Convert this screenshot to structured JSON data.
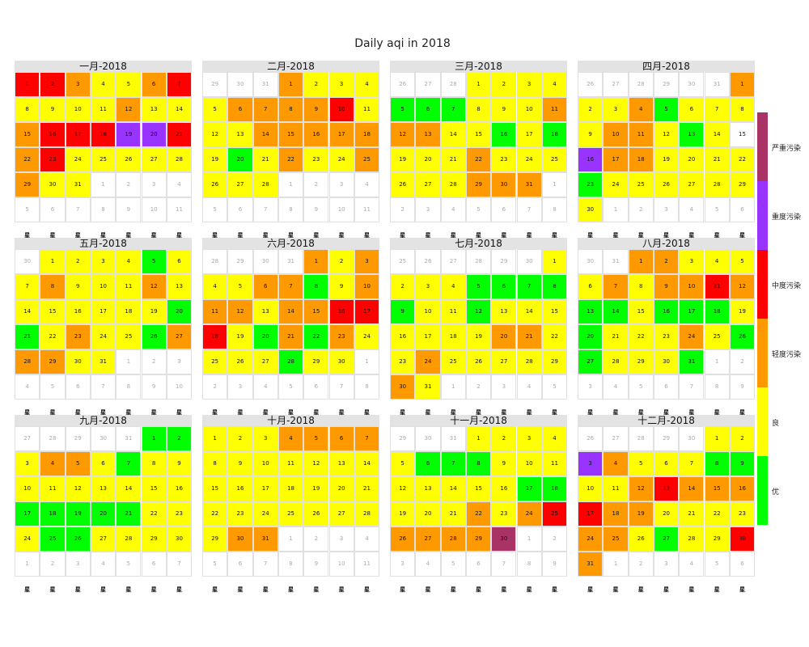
{
  "chart_data": {
    "type": "calendar-heatmap",
    "title": "Daily aqi in 2018",
    "year": 2018,
    "weekday_header_glyph": "星",
    "legend": {
      "categories": [
        {
          "label": "优",
          "color": "#00ff00"
        },
        {
          "label": "良",
          "color": "#ffff00"
        },
        {
          "label": "轻度污染",
          "color": "#ff9900"
        },
        {
          "label": "中度污染",
          "color": "#ff0000"
        },
        {
          "label": "重度污染",
          "color": "#9933ff"
        },
        {
          "label": "严重污染",
          "color": "#aa3366"
        }
      ]
    },
    "months": [
      {
        "name": "一月-2018",
        "days": 31,
        "levels": [
          3,
          3,
          2,
          1,
          1,
          2,
          3,
          1,
          1,
          1,
          1,
          2,
          1,
          1,
          2,
          3,
          3,
          3,
          4,
          4,
          3,
          2,
          3,
          1,
          1,
          1,
          1,
          1,
          2,
          1,
          1
        ]
      },
      {
        "name": "二月-2018",
        "days": 28,
        "levels": [
          2,
          1,
          1,
          1,
          1,
          2,
          2,
          2,
          2,
          3,
          1,
          1,
          1,
          2,
          2,
          2,
          2,
          2,
          1,
          0,
          1,
          2,
          1,
          1,
          2,
          1,
          1,
          1
        ]
      },
      {
        "name": "三月-2018",
        "days": 31,
        "levels": [
          1,
          1,
          1,
          1,
          0,
          0,
          0,
          1,
          1,
          1,
          2,
          2,
          2,
          1,
          1,
          0,
          1,
          0,
          1,
          1,
          1,
          2,
          1,
          1,
          1,
          1,
          1,
          1,
          2,
          2,
          2
        ]
      },
      {
        "name": "四月-2018",
        "days": 30,
        "levels": [
          2,
          1,
          1,
          2,
          0,
          1,
          1,
          1,
          1,
          2,
          2,
          1,
          0,
          1,
          -1,
          4,
          2,
          2,
          1,
          1,
          1,
          1,
          0,
          1,
          1,
          1,
          1,
          1,
          1,
          1
        ]
      },
      {
        "name": "五月-2018",
        "days": 31,
        "levels": [
          1,
          1,
          1,
          1,
          0,
          1,
          1,
          2,
          1,
          1,
          1,
          2,
          1,
          1,
          1,
          1,
          1,
          1,
          1,
          0,
          0,
          1,
          2,
          1,
          1,
          0,
          2,
          2,
          2,
          1,
          1
        ]
      },
      {
        "name": "六月-2018",
        "days": 30,
        "levels": [
          2,
          1,
          2,
          1,
          1,
          2,
          2,
          0,
          1,
          2,
          2,
          2,
          1,
          2,
          2,
          3,
          3,
          3,
          1,
          0,
          2,
          0,
          2,
          1,
          1,
          1,
          1,
          0,
          1,
          1
        ]
      },
      {
        "name": "七月-2018",
        "days": 31,
        "levels": [
          1,
          1,
          1,
          1,
          0,
          0,
          0,
          0,
          0,
          1,
          1,
          0,
          1,
          1,
          1,
          1,
          1,
          1,
          1,
          2,
          2,
          1,
          1,
          2,
          1,
          1,
          1,
          1,
          1,
          2,
          1
        ]
      },
      {
        "name": "八月-2018",
        "days": 31,
        "levels": [
          2,
          2,
          1,
          1,
          1,
          1,
          2,
          1,
          2,
          2,
          3,
          2,
          0,
          0,
          1,
          0,
          0,
          0,
          1,
          0,
          1,
          1,
          1,
          2,
          1,
          0,
          0,
          1,
          1,
          1,
          0
        ]
      },
      {
        "name": "九月-2018",
        "days": 30,
        "levels": [
          0,
          0,
          1,
          2,
          2,
          1,
          0,
          1,
          1,
          1,
          1,
          1,
          1,
          1,
          1,
          1,
          0,
          0,
          0,
          0,
          0,
          1,
          1,
          1,
          0,
          0,
          1,
          1,
          1,
          1
        ]
      },
      {
        "name": "十月-2018",
        "days": 31,
        "levels": [
          1,
          1,
          1,
          2,
          2,
          2,
          2,
          1,
          1,
          1,
          1,
          1,
          1,
          1,
          1,
          1,
          1,
          1,
          1,
          1,
          1,
          1,
          1,
          1,
          1,
          1,
          1,
          1,
          1,
          2,
          2
        ]
      },
      {
        "name": "十一月-2018",
        "days": 30,
        "levels": [
          1,
          1,
          1,
          1,
          1,
          0,
          0,
          0,
          1,
          1,
          1,
          1,
          1,
          1,
          1,
          1,
          0,
          0,
          1,
          1,
          1,
          2,
          1,
          2,
          3,
          2,
          2,
          2,
          2,
          5
        ]
      },
      {
        "name": "十二月-2018",
        "days": 31,
        "levels": [
          1,
          1,
          4,
          2,
          1,
          1,
          1,
          0,
          0,
          1,
          1,
          2,
          3,
          2,
          2,
          2,
          3,
          2,
          2,
          1,
          1,
          1,
          1,
          2,
          2,
          1,
          0,
          1,
          1,
          3,
          2
        ]
      }
    ]
  }
}
